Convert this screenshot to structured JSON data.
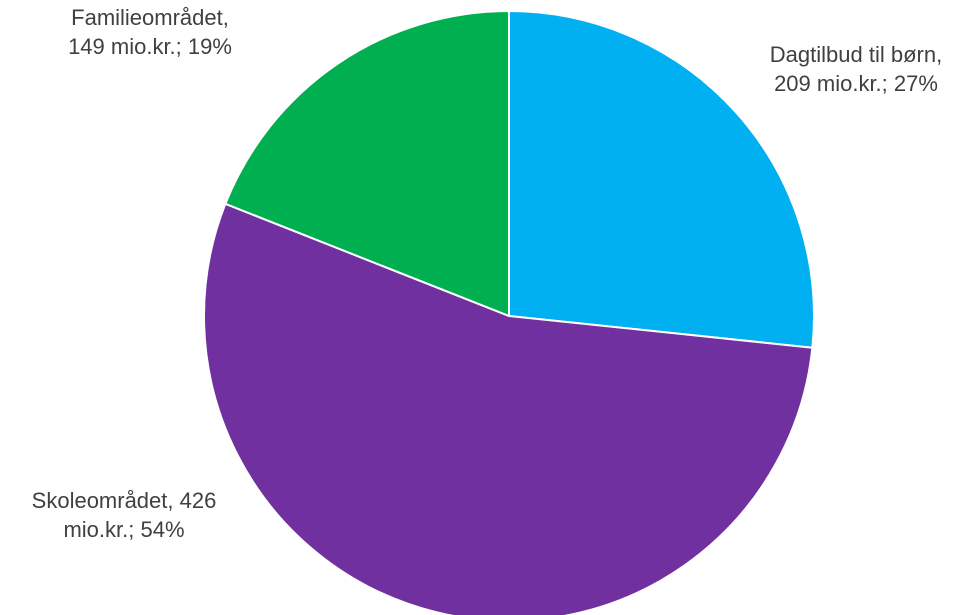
{
  "chart_data": {
    "type": "pie",
    "unit": "mio.kr.",
    "slices": [
      {
        "name": "Dagtilbud til børn",
        "value": 209,
        "percent": 27,
        "color": "#00B0F0",
        "label_lines": [
          "Dagtilbud til børn,",
          "209 mio.kr.; 27%"
        ]
      },
      {
        "name": "Skoleområdet",
        "value": 426,
        "percent": 54,
        "color": "#7030A0",
        "label_lines": [
          "Skoleområdet, 426",
          "mio.kr.; 54%"
        ]
      },
      {
        "name": "Familieområdet",
        "value": 149,
        "percent": 19,
        "color": "#00B050",
        "label_lines": [
          "Familieområdet,",
          "149 mio.kr.; 19%"
        ]
      }
    ],
    "start_angle": "12 o'clock",
    "direction": "clockwise",
    "legend": "none",
    "slice_border_color": "#ffffff"
  }
}
